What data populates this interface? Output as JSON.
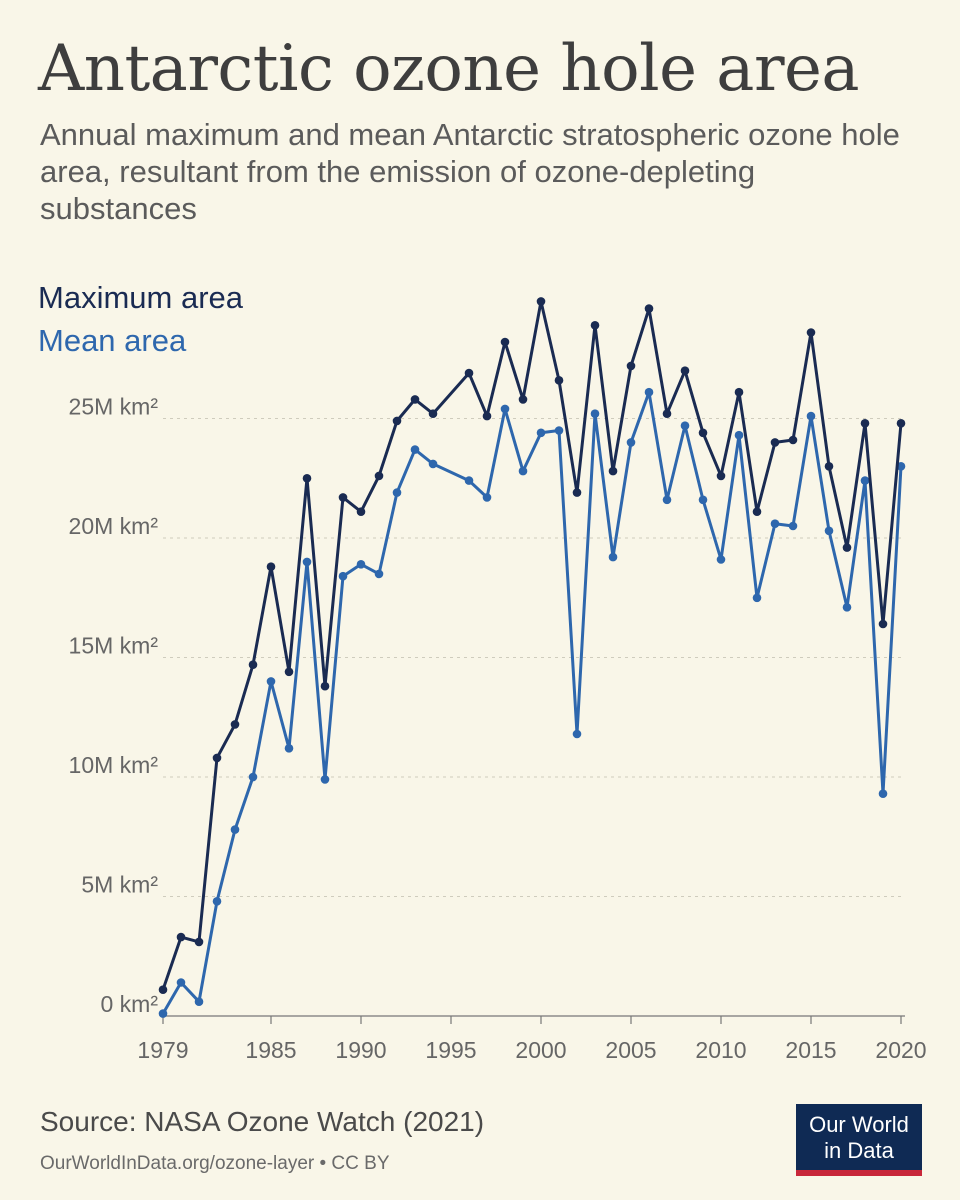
{
  "header": {
    "title": "Antarctic ozone hole area",
    "subtitle": "Annual maximum and mean Antarctic stratospheric ozone hole area, resultant from the emission of ozone-depleting substances"
  },
  "legend": {
    "max_label": "Maximum area",
    "mean_label": "Mean area"
  },
  "footer": {
    "source": "Source: NASA Ozone Watch (2021)",
    "url": "OurWorldInData.org/ozone-layer • CC BY",
    "logo_line1": "Our World",
    "logo_line2": "in Data"
  },
  "colors": {
    "max": "#1a2b52",
    "mean": "#2e67ad",
    "background": "#f9f6e8",
    "logo_bg": "#0f2a54",
    "logo_accent": "#c8273a"
  },
  "chart_data": {
    "type": "line",
    "ylim": [
      0,
      25
    ],
    "yticks": [
      0,
      5,
      10,
      15,
      20,
      25
    ],
    "ytick_labels": [
      "0 km²",
      "5M km²",
      "10M km²",
      "15M km²",
      "20M km²",
      "25M km²"
    ],
    "xlim": [
      1979,
      2020
    ],
    "xticks": [
      1979,
      1985,
      1990,
      1995,
      2000,
      2005,
      2010,
      2015,
      2020
    ],
    "xtick_labels": [
      "1979",
      "1985",
      "1990",
      "1995",
      "2000",
      "2005",
      "2010",
      "2015",
      "2020"
    ],
    "grid": "horizontal dotted",
    "series": [
      {
        "name": "Maximum area",
        "color": "#1a2b52",
        "points": [
          [
            1979,
            1.1
          ],
          [
            1980,
            3.3
          ],
          [
            1981,
            3.1
          ],
          [
            1982,
            10.8
          ],
          [
            1983,
            12.2
          ],
          [
            1984,
            14.7
          ],
          [
            1985,
            18.8
          ],
          [
            1986,
            14.4
          ],
          [
            1987,
            22.5
          ],
          [
            1988,
            13.8
          ],
          [
            1989,
            21.7
          ],
          [
            1990,
            21.1
          ],
          [
            1991,
            22.6
          ],
          [
            1992,
            24.9
          ],
          [
            1993,
            25.8
          ],
          [
            1994,
            25.2
          ],
          [
            1996,
            26.9
          ],
          [
            1997,
            25.1
          ],
          [
            1998,
            28.2
          ],
          [
            1999,
            25.8
          ],
          [
            2000,
            29.9
          ],
          [
            2001,
            26.6
          ],
          [
            2002,
            21.9
          ],
          [
            2003,
            28.9
          ],
          [
            2004,
            22.8
          ],
          [
            2005,
            27.2
          ],
          [
            2006,
            29.6
          ],
          [
            2007,
            25.2
          ],
          [
            2008,
            27.0
          ],
          [
            2009,
            24.4
          ],
          [
            2010,
            22.6
          ],
          [
            2011,
            26.1
          ],
          [
            2012,
            21.1
          ],
          [
            2013,
            24.0
          ],
          [
            2014,
            24.1
          ],
          [
            2015,
            28.6
          ],
          [
            2016,
            23.0
          ],
          [
            2017,
            19.6
          ],
          [
            2018,
            24.8
          ],
          [
            2019,
            16.4
          ],
          [
            2020,
            24.8
          ]
        ]
      },
      {
        "name": "Mean area",
        "color": "#2e67ad",
        "points": [
          [
            1979,
            0.1
          ],
          [
            1980,
            1.4
          ],
          [
            1981,
            0.6
          ],
          [
            1982,
            4.8
          ],
          [
            1983,
            7.8
          ],
          [
            1984,
            10.0
          ],
          [
            1985,
            14.0
          ],
          [
            1986,
            11.2
          ],
          [
            1987,
            19.0
          ],
          [
            1988,
            9.9
          ],
          [
            1989,
            18.4
          ],
          [
            1990,
            18.9
          ],
          [
            1991,
            18.5
          ],
          [
            1992,
            21.9
          ],
          [
            1993,
            23.7
          ],
          [
            1994,
            23.1
          ],
          [
            1996,
            22.4
          ],
          [
            1997,
            21.7
          ],
          [
            1998,
            25.4
          ],
          [
            1999,
            22.8
          ],
          [
            2000,
            24.4
          ],
          [
            2001,
            24.5
          ],
          [
            2002,
            11.8
          ],
          [
            2003,
            25.2
          ],
          [
            2004,
            19.2
          ],
          [
            2005,
            24.0
          ],
          [
            2006,
            26.1
          ],
          [
            2007,
            21.6
          ],
          [
            2008,
            24.7
          ],
          [
            2009,
            21.6
          ],
          [
            2010,
            19.1
          ],
          [
            2011,
            24.3
          ],
          [
            2012,
            17.5
          ],
          [
            2013,
            20.6
          ],
          [
            2014,
            20.5
          ],
          [
            2015,
            25.1
          ],
          [
            2016,
            20.3
          ],
          [
            2017,
            17.1
          ],
          [
            2018,
            22.4
          ],
          [
            2019,
            9.3
          ],
          [
            2020,
            23.0
          ]
        ]
      }
    ]
  }
}
